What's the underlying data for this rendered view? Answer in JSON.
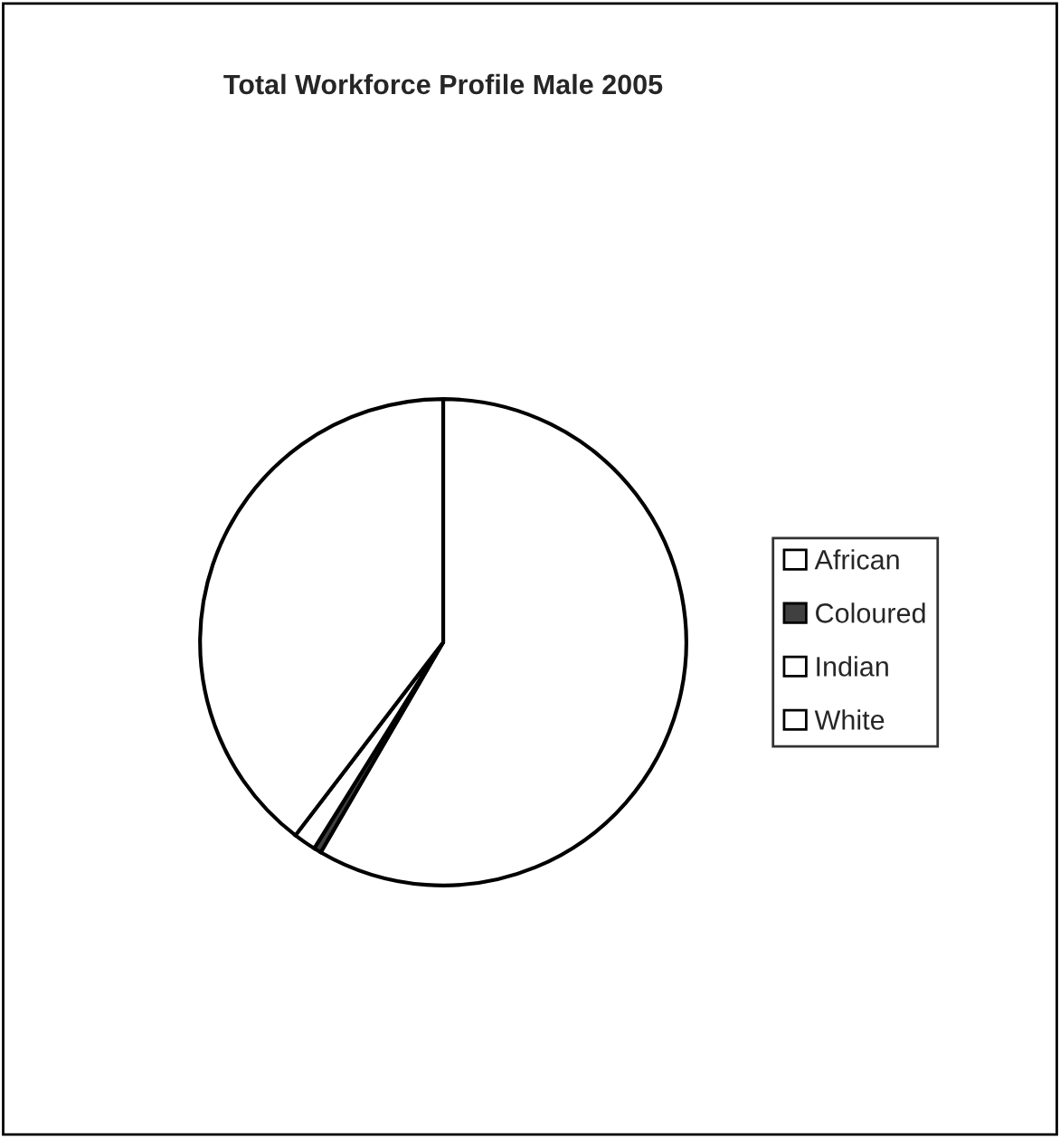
{
  "chart_data": {
    "type": "pie",
    "title": "Total Workforce Profile Male 2005",
    "categories": [
      "African",
      "Coloured",
      "Indian",
      "White"
    ],
    "values": [
      58.4,
      0.5,
      1.5,
      39.6
    ],
    "colors": [
      "#ffffff",
      "#404040",
      "#ffffff",
      "#ffffff"
    ],
    "legend": "right"
  }
}
